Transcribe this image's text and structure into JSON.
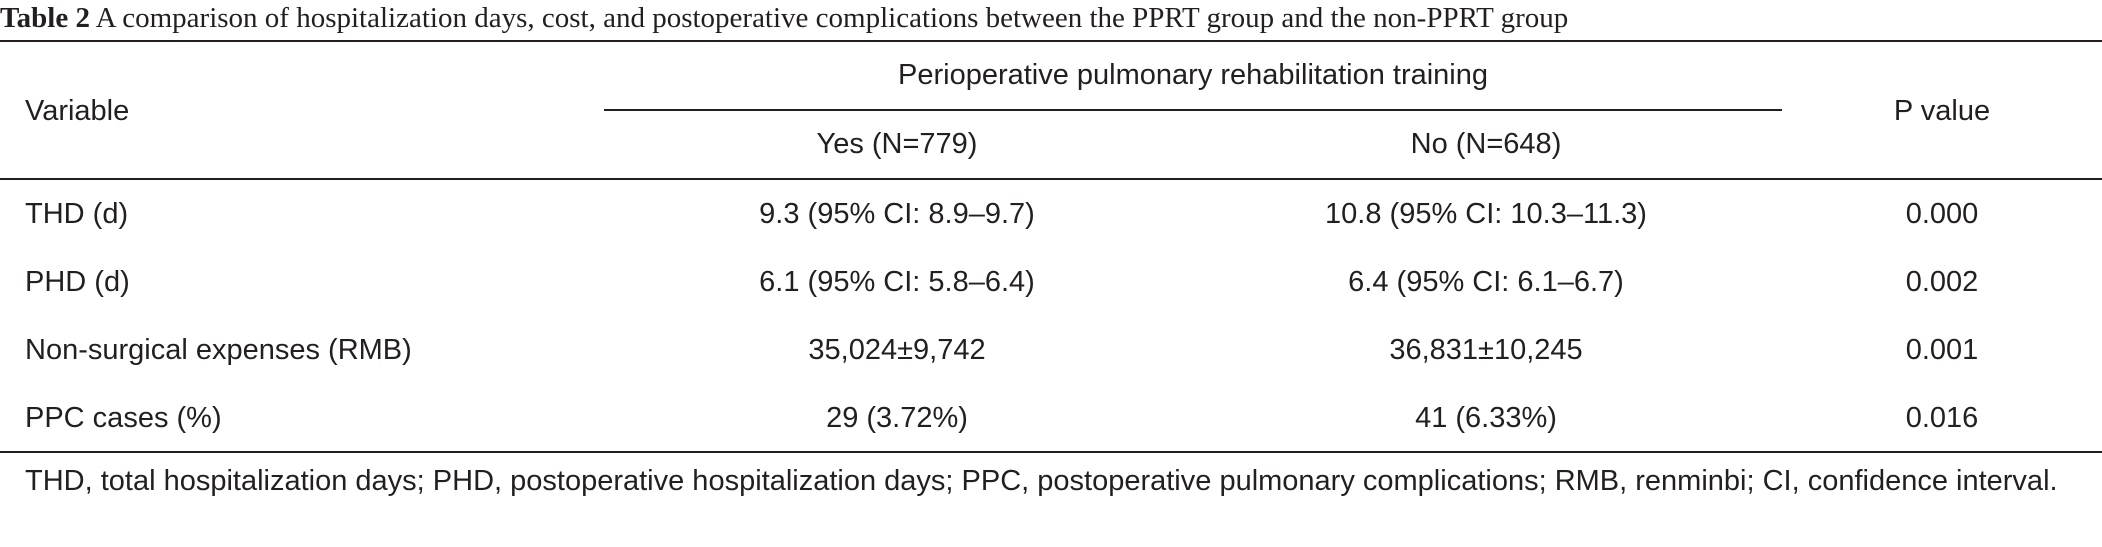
{
  "caption": {
    "label": "Table 2",
    "text": "A comparison of hospitalization days, cost, and postoperative complications between the PPRT group and the non-PPRT group"
  },
  "header": {
    "variable": "Variable",
    "group_span": "Perioperative pulmonary rehabilitation training",
    "yes": "Yes (N=779)",
    "no": "No (N=648)",
    "p_value": "P value"
  },
  "rows": [
    {
      "variable": "THD (d)",
      "yes": "9.3 (95% CI: 8.9–9.7)",
      "no": "10.8 (95% CI: 10.3–11.3)",
      "p": "0.000"
    },
    {
      "variable": "PHD (d)",
      "yes": "6.1 (95% CI: 5.8–6.4)",
      "no": "6.4 (95% CI: 6.1–6.7)",
      "p": "0.002"
    },
    {
      "variable": "Non-surgical expenses (RMB)",
      "yes": "35,024±9,742",
      "no": "36,831±10,245",
      "p": "0.001"
    },
    {
      "variable": "PPC cases (%)",
      "yes": "29 (3.72%)",
      "no": "41 (6.33%)",
      "p": "0.016"
    }
  ],
  "footnote": "THD, total hospitalization days; PHD, postoperative hospitalization days; PPC, postoperative pulmonary complications; RMB, renminbi; CI, confidence interval."
}
